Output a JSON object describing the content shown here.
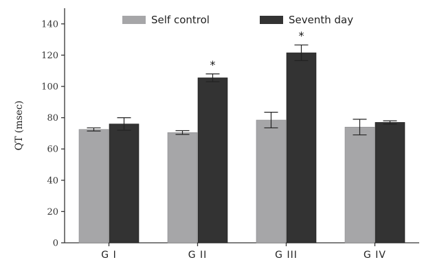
{
  "chart_data": {
    "type": "bar",
    "title": "",
    "xlabel": "",
    "ylabel": "QT (msec)",
    "ylim": [
      0,
      150
    ],
    "yticks": [
      0,
      20,
      40,
      60,
      80,
      100,
      120,
      140
    ],
    "categories": [
      "G I",
      "G II",
      "G III",
      "G IV"
    ],
    "legend_position": "top",
    "series": [
      {
        "name": "Self control",
        "color": "#a6a6a8",
        "values": [
          72.5,
          70.5,
          78.5,
          74
        ],
        "errors": [
          1,
          1.2,
          5,
          5
        ],
        "annotations": [
          "",
          "",
          "",
          ""
        ]
      },
      {
        "name": "Seventh day",
        "color": "#333333",
        "values": [
          76,
          105.5,
          121.5,
          77
        ],
        "errors": [
          4,
          2.5,
          5,
          1
        ],
        "annotations": [
          "",
          "*",
          "*",
          ""
        ]
      }
    ],
    "grid": false
  }
}
